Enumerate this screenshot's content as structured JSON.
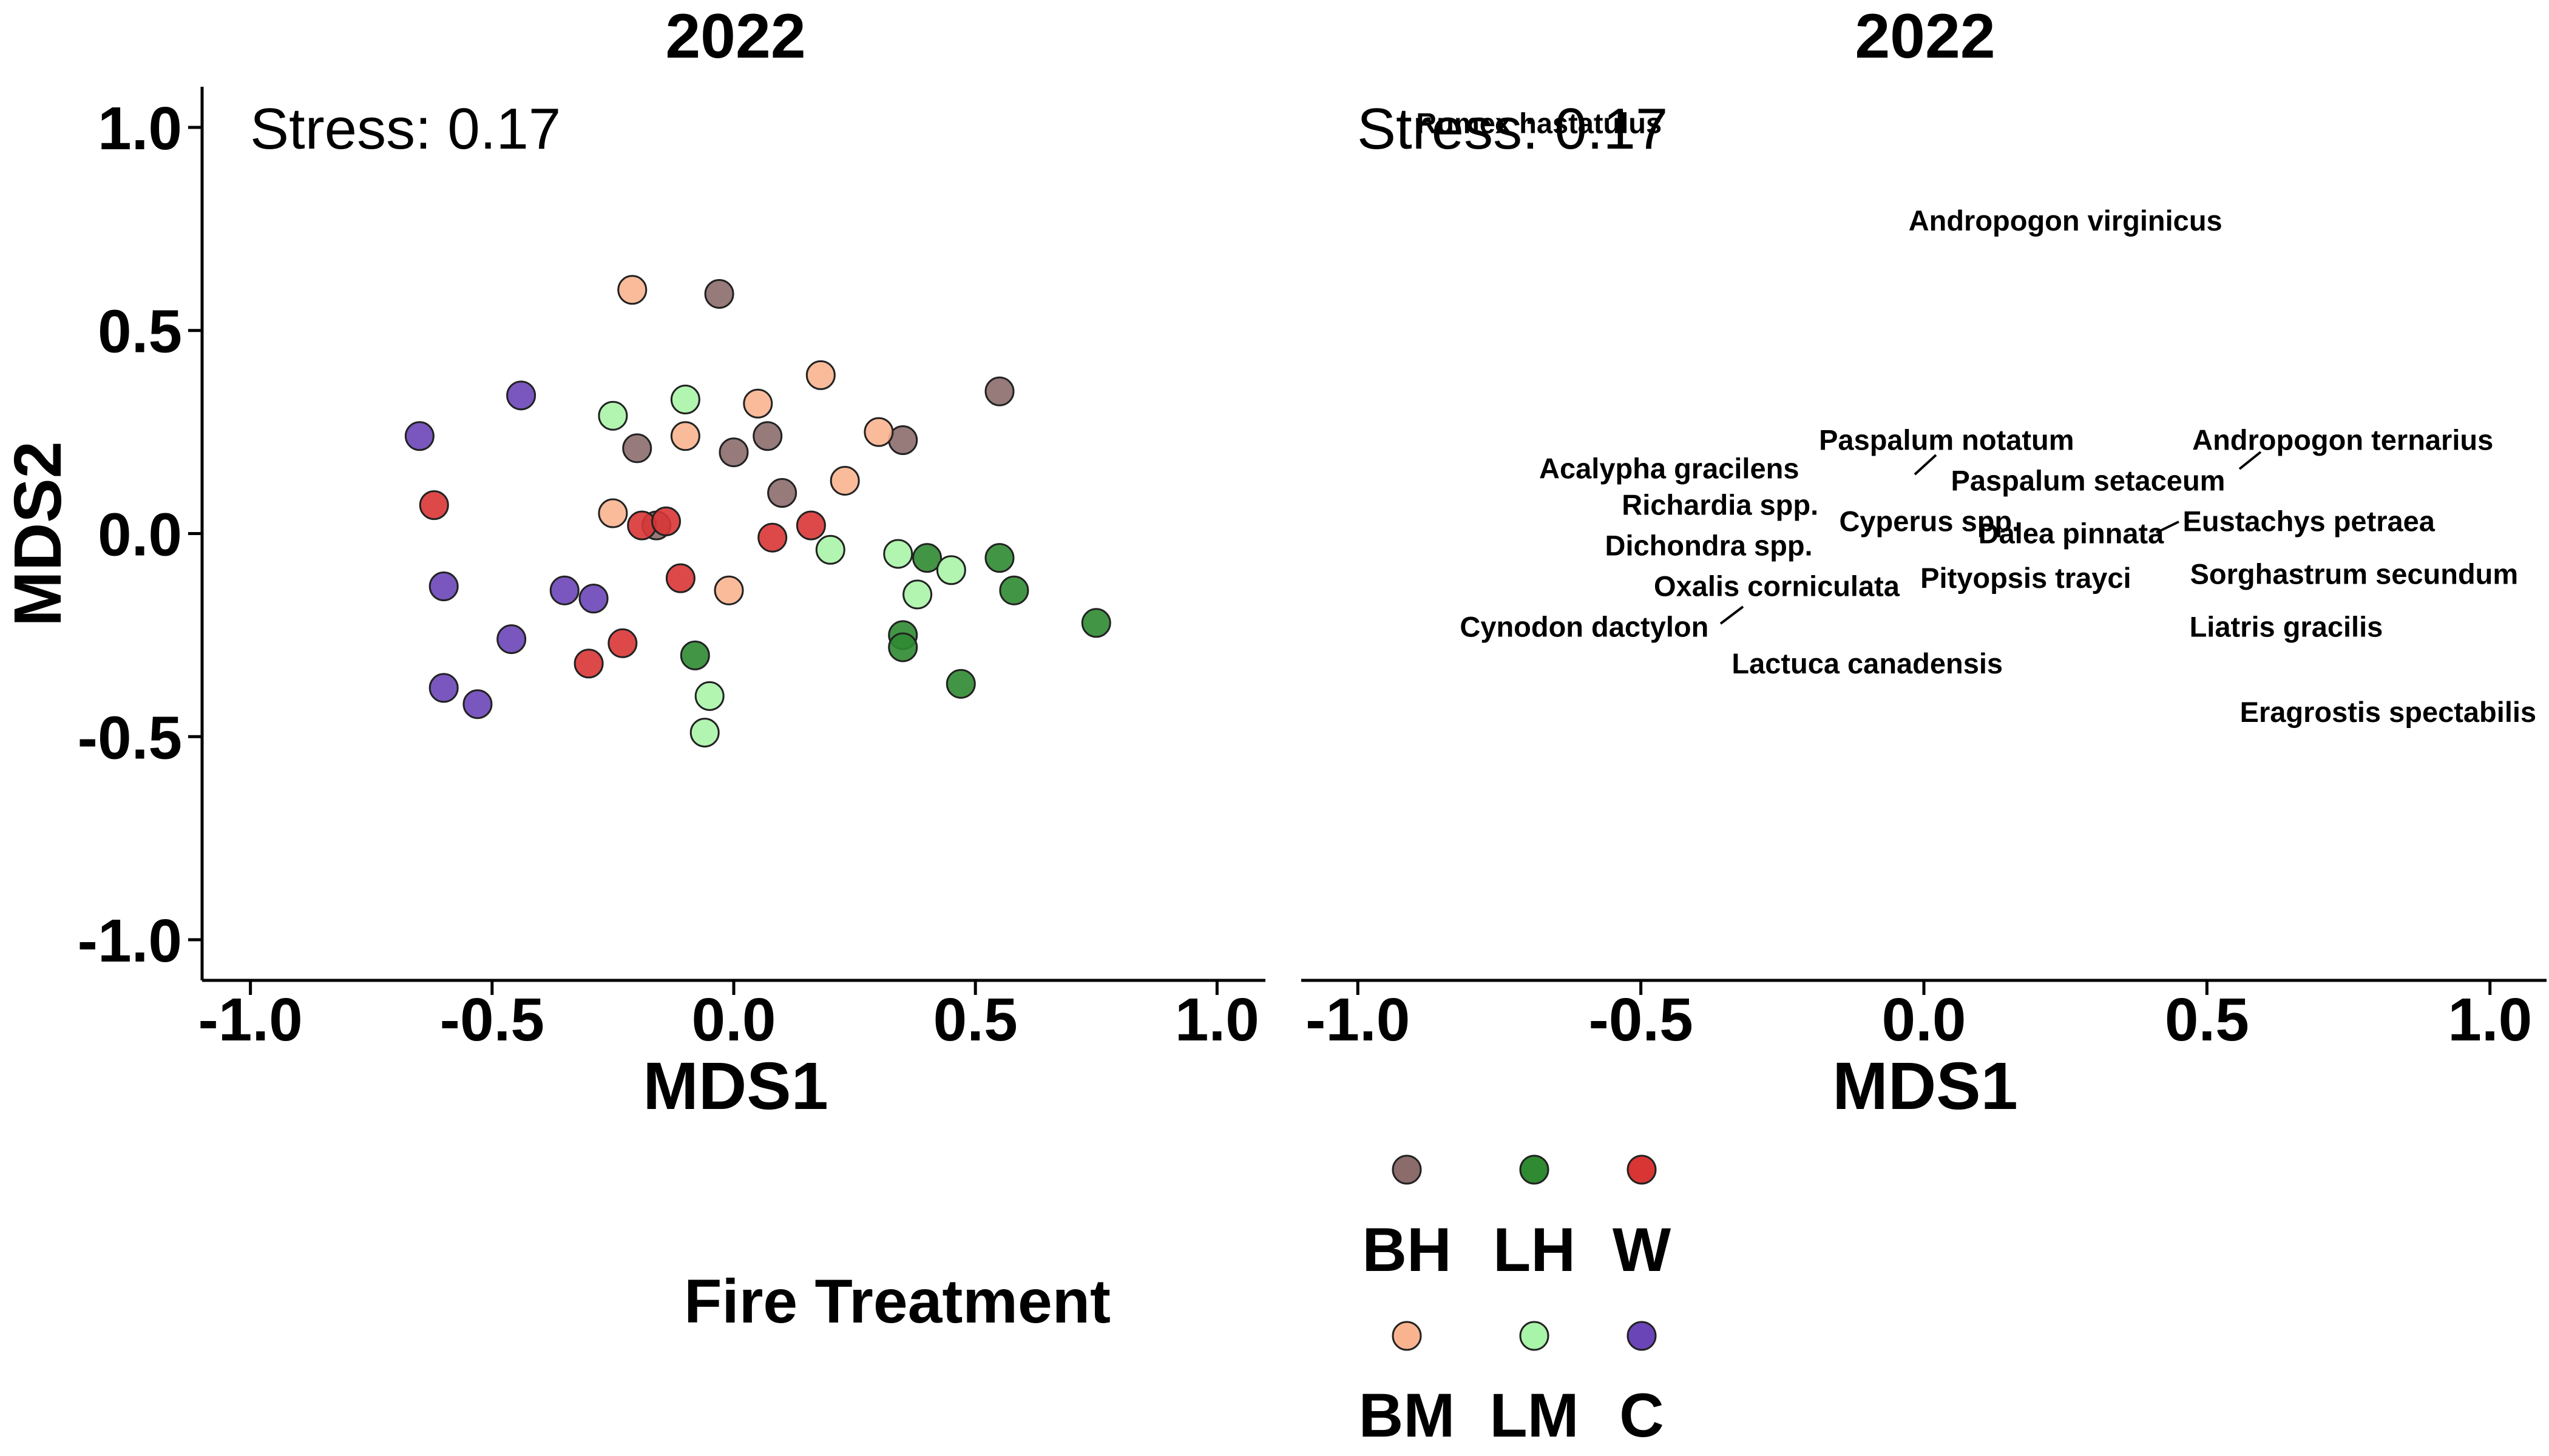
{
  "chart_data": [
    {
      "type": "scatter",
      "title": "2022",
      "xlabel": "MDS1",
      "ylabel": "MDS2",
      "xlim": [
        -1.1,
        1.1
      ],
      "ylim": [
        -1.1,
        1.1
      ],
      "xticks": [
        "-1.0",
        "-0.5",
        "0.0",
        "0.5",
        "1.0"
      ],
      "yticks": [
        "1.0",
        "0.5",
        "0.0",
        "-0.5",
        "-1.0"
      ],
      "annotation": "Stress: 0.17",
      "grid": false,
      "series": [
        {
          "name": "BH",
          "color": "#8c6b6b",
          "points": [
            [
              -0.03,
              0.59
            ],
            [
              0.55,
              0.35
            ],
            [
              -0.2,
              0.21
            ],
            [
              0.0,
              0.2
            ],
            [
              0.07,
              0.24
            ],
            [
              0.35,
              0.23
            ],
            [
              0.1,
              0.1
            ],
            [
              -0.16,
              0.02
            ]
          ]
        },
        {
          "name": "BM",
          "color": "#f9b48f",
          "points": [
            [
              -0.21,
              0.6
            ],
            [
              0.18,
              0.39
            ],
            [
              0.05,
              0.32
            ],
            [
              -0.1,
              0.24
            ],
            [
              0.3,
              0.25
            ],
            [
              0.23,
              0.13
            ],
            [
              -0.25,
              0.05
            ],
            [
              -0.01,
              -0.14
            ]
          ]
        },
        {
          "name": "LH",
          "color": "#2f8a32",
          "points": [
            [
              0.4,
              -0.06
            ],
            [
              0.55,
              -0.06
            ],
            [
              0.58,
              -0.14
            ],
            [
              0.75,
              -0.22
            ],
            [
              0.35,
              -0.25
            ],
            [
              0.35,
              -0.28
            ],
            [
              0.47,
              -0.37
            ],
            [
              -0.08,
              -0.3
            ]
          ]
        },
        {
          "name": "LM",
          "color": "#a8f4a8",
          "points": [
            [
              -0.25,
              0.29
            ],
            [
              -0.1,
              0.33
            ],
            [
              0.2,
              -0.04
            ],
            [
              0.34,
              -0.05
            ],
            [
              0.45,
              -0.09
            ],
            [
              0.38,
              -0.15
            ],
            [
              -0.05,
              -0.4
            ],
            [
              -0.06,
              -0.49
            ]
          ]
        },
        {
          "name": "W",
          "color": "#d93535",
          "points": [
            [
              -0.62,
              0.07
            ],
            [
              -0.19,
              0.02
            ],
            [
              -0.14,
              0.03
            ],
            [
              0.08,
              -0.01
            ],
            [
              0.16,
              0.02
            ],
            [
              -0.11,
              -0.11
            ],
            [
              -0.23,
              -0.27
            ],
            [
              -0.3,
              -0.32
            ]
          ]
        },
        {
          "name": "C",
          "color": "#6a45b8",
          "points": [
            [
              -0.65,
              0.24
            ],
            [
              -0.44,
              0.34
            ],
            [
              -0.6,
              -0.13
            ],
            [
              -0.35,
              -0.14
            ],
            [
              -0.29,
              -0.16
            ],
            [
              -0.46,
              -0.26
            ],
            [
              -0.6,
              -0.38
            ],
            [
              -0.53,
              -0.42
            ]
          ]
        }
      ]
    },
    {
      "type": "scatter",
      "title": "2022",
      "xlabel": "MDS1",
      "xlim": [
        -1.1,
        1.1
      ],
      "ylim": [
        -1.1,
        1.1
      ],
      "xticks": [
        "-1.0",
        "-0.5",
        "0.0",
        "0.5",
        "1.0"
      ],
      "annotation": "Stress: 0.17",
      "grid": false,
      "species_labels": [
        {
          "text": "Rumex hastatulus",
          "x": -0.68,
          "y": 1.01
        },
        {
          "text": "Andropogon virginicus",
          "x": 0.25,
          "y": 0.77
        },
        {
          "text": "Paspalum notatum",
          "x": 0.04,
          "y": 0.23
        },
        {
          "text": "Andropogon ternarius",
          "x": 0.74,
          "y": 0.23
        },
        {
          "text": "Acalypha gracilens",
          "x": -0.45,
          "y": 0.16
        },
        {
          "text": "Paspalum setaceum",
          "x": 0.29,
          "y": 0.13
        },
        {
          "text": "Richardia spp.",
          "x": -0.36,
          "y": 0.07
        },
        {
          "text": "Cyperus spp.",
          "x": 0.01,
          "y": 0.03
        },
        {
          "text": "Eustachys petraea",
          "x": 0.68,
          "y": 0.03
        },
        {
          "text": "Dalea pinnata",
          "x": 0.26,
          "y": 0.0
        },
        {
          "text": "Dichondra spp.",
          "x": -0.38,
          "y": -0.03
        },
        {
          "text": "Sorghastrum secundum",
          "x": 0.76,
          "y": -0.1
        },
        {
          "text": "Pityopsis trayci",
          "x": 0.18,
          "y": -0.11
        },
        {
          "text": "Oxalis corniculata",
          "x": -0.26,
          "y": -0.13
        },
        {
          "text": "Cynodon dactylon",
          "x": -0.6,
          "y": -0.23
        },
        {
          "text": "Liatris gracilis",
          "x": 0.64,
          "y": -0.23
        },
        {
          "text": "Lactuca canadensis",
          "x": -0.1,
          "y": -0.32
        },
        {
          "text": "Eragrostis spectabilis",
          "x": 0.82,
          "y": -0.44
        }
      ]
    }
  ],
  "legend": {
    "title": "Fire Treatment",
    "items": [
      {
        "label": "BH",
        "color": "#8c6b6b"
      },
      {
        "label": "LH",
        "color": "#2f8a32"
      },
      {
        "label": "W",
        "color": "#d93535"
      },
      {
        "label": "BM",
        "color": "#f9b48f"
      },
      {
        "label": "LM",
        "color": "#a8f4a8"
      },
      {
        "label": "C",
        "color": "#6a45b8"
      }
    ]
  }
}
